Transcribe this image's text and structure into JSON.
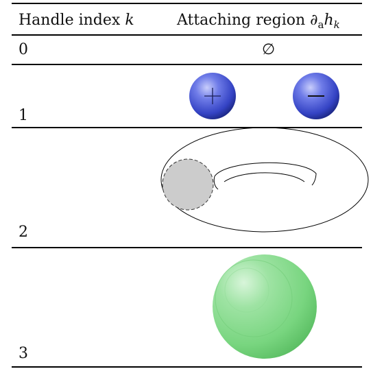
{
  "header": {
    "col1_text": "Handle index ",
    "col1_var": "k",
    "col2_text": "Attaching region ",
    "col2_symbol": "∂",
    "col2_sub": "a",
    "col2_var": "h",
    "col2_var_sub": "k"
  },
  "rows": [
    {
      "index": "0",
      "region_label": "∅",
      "region": "empty-set"
    },
    {
      "index": "1",
      "region": "two-spheres",
      "sphere_signs": [
        "+",
        "−"
      ]
    },
    {
      "index": "2",
      "region": "torus-with-disk"
    },
    {
      "index": "3",
      "region": "sphere"
    }
  ],
  "colors": {
    "sphere_blue": "#3d4fd1",
    "sphere_green": "#73d17a",
    "disk_gray": "#cccccc",
    "rule": "#000000"
  }
}
